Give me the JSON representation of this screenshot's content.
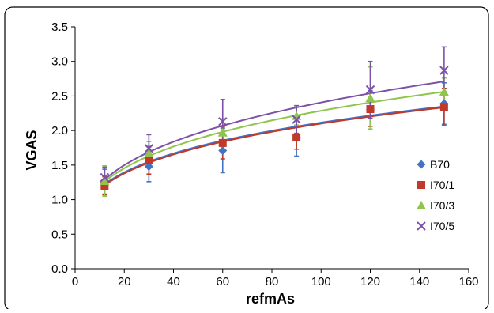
{
  "chart_data": {
    "type": "scatter",
    "xlabel": "refmAs",
    "ylabel": "VGAS",
    "xlim": [
      0,
      160
    ],
    "ylim": [
      0,
      3.5
    ],
    "xticks": [
      "0",
      "20",
      "40",
      "60",
      "80",
      "100",
      "120",
      "140",
      "160"
    ],
    "yticks": [
      "0.0",
      "0.5",
      "1.0",
      "1.5",
      "2.0",
      "2.5",
      "3.0",
      "3.5"
    ],
    "grid": false,
    "legend_position": "right",
    "x": [
      12,
      30,
      60,
      90,
      120,
      150
    ],
    "series": [
      {
        "name": "B70",
        "marker": "diamond",
        "color": "#4472c4",
        "values": [
          1.26,
          1.48,
          1.71,
          1.9,
          2.3,
          2.39
        ],
        "error": [
          0.18,
          0.22,
          0.32,
          0.27,
          0.28,
          0.3
        ],
        "trend": [
          1.22,
          1.56,
          1.85,
          2.05,
          2.21,
          2.36
        ]
      },
      {
        "name": "I70/1",
        "marker": "square",
        "color": "#c0392b",
        "values": [
          1.2,
          1.57,
          1.82,
          1.9,
          2.31,
          2.34
        ],
        "error": [
          0.13,
          0.2,
          0.23,
          0.17,
          0.25,
          0.27
        ],
        "trend": [
          1.2,
          1.55,
          1.84,
          2.04,
          2.2,
          2.33
        ]
      },
      {
        "name": "I70/3",
        "marker": "triangle",
        "color": "#8fc54a",
        "values": [
          1.27,
          1.67,
          1.97,
          2.21,
          2.47,
          2.56
        ],
        "error": [
          0.22,
          0.17,
          0.2,
          0.13,
          0.45,
          0.2
        ],
        "trend": [
          1.26,
          1.64,
          1.97,
          2.21,
          2.41,
          2.57
        ]
      },
      {
        "name": "I70/5",
        "marker": "x",
        "color": "#7b52a8",
        "values": [
          1.32,
          1.74,
          2.13,
          2.16,
          2.59,
          2.87
        ],
        "error": [
          0.15,
          0.2,
          0.32,
          0.2,
          0.41,
          0.34
        ],
        "trend": [
          1.29,
          1.7,
          2.05,
          2.32,
          2.54,
          2.73
        ]
      }
    ]
  }
}
